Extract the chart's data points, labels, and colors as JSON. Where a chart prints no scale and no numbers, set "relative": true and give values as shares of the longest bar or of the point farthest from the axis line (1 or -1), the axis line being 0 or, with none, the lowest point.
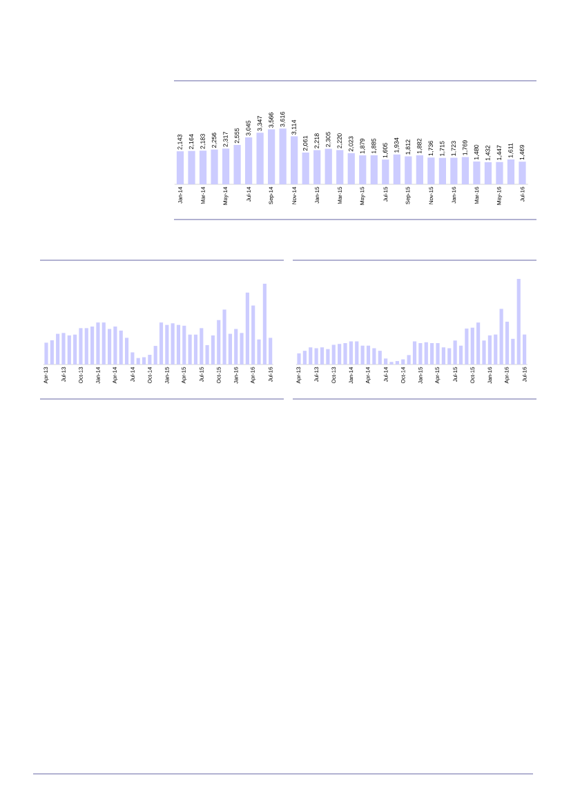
{
  "chart_data": [
    {
      "type": "bar",
      "color": "#ccccff",
      "value_labels": [
        "2,143",
        "2,164",
        "2,183",
        "2,256",
        "2,317",
        "2,555",
        "3,045",
        "3,347",
        "3,566",
        "3,616",
        "3,114",
        "2,061",
        "2,218",
        "2,305",
        "2,220",
        "2,023",
        "1,879",
        "1,885",
        "1,605",
        "1,934",
        "1,812",
        "1,882",
        "1,736",
        "1,715",
        "1,723",
        "1,769",
        "1,480",
        "1,432",
        "1,447",
        "1,611",
        "1,469"
      ],
      "categories": [
        "Jan-14",
        null,
        "Mar-14",
        null,
        "May-14",
        null,
        "Jul-14",
        null,
        "Sep-14",
        null,
        "Nov-14",
        null,
        "Jan-15",
        null,
        "Mar-15",
        null,
        "May-15",
        null,
        "Jul-15",
        null,
        "Sep-15",
        null,
        "Nov-15",
        null,
        "Jan-16",
        null,
        "Mar-16",
        null,
        "May-16",
        null,
        "Jul-16"
      ],
      "values": [
        2143,
        2164,
        2183,
        2256,
        2317,
        2555,
        3045,
        3347,
        3566,
        3616,
        3114,
        2061,
        2218,
        2305,
        2220,
        2023,
        1879,
        1885,
        1605,
        1934,
        1812,
        1882,
        1736,
        1715,
        1723,
        1769,
        1480,
        1432,
        1447,
        1611,
        1469
      ]
    },
    {
      "type": "bar",
      "color": "#ccccff",
      "relative": true,
      "categories": [
        "Apr-13",
        null,
        null,
        "Jul-13",
        null,
        null,
        "Oct-13",
        null,
        null,
        "Jan-14",
        null,
        null,
        "Apr-14",
        null,
        null,
        "Jul-14",
        null,
        null,
        "Oct-14",
        null,
        null,
        "Jan-15",
        null,
        null,
        "Apr-15",
        null,
        null,
        "Jul-15",
        null,
        null,
        "Oct-15",
        null,
        null,
        "Jan-16",
        null,
        null,
        "Apr-16",
        null,
        null,
        "Jul-16"
      ],
      "values": [
        0.27,
        0.3,
        0.38,
        0.39,
        0.36,
        0.37,
        0.45,
        0.45,
        0.47,
        0.52,
        0.52,
        0.44,
        0.47,
        0.42,
        0.33,
        0.15,
        0.08,
        0.09,
        0.12,
        0.23,
        0.52,
        0.49,
        0.51,
        0.49,
        0.48,
        0.37,
        0.37,
        0.45,
        0.24,
        0.36,
        0.55,
        0.68,
        0.38,
        0.44,
        0.39,
        0.89,
        0.73,
        0.31,
        1,
        0.33
      ]
    },
    {
      "type": "bar",
      "color": "#ccccff",
      "relative": true,
      "categories": [
        "Apr-13",
        null,
        null,
        "Jul-13",
        null,
        null,
        "Oct-13",
        null,
        null,
        "Jan-14",
        null,
        null,
        "Apr-14",
        null,
        null,
        "Jul-14",
        null,
        null,
        "Oct-14",
        null,
        null,
        "Jan-15",
        null,
        null,
        "Apr-15",
        null,
        null,
        "Jul-15",
        null,
        null,
        "Oct-15",
        null,
        null,
        "Jan-16",
        null,
        null,
        "Apr-16",
        null,
        null,
        "Jul-16"
      ],
      "values": [
        0.13,
        0.16,
        0.2,
        0.19,
        0.2,
        0.18,
        0.23,
        0.24,
        0.25,
        0.27,
        0.27,
        0.22,
        0.22,
        0.19,
        0.16,
        0.07,
        0.03,
        0.04,
        0.06,
        0.11,
        0.27,
        0.25,
        0.26,
        0.25,
        0.25,
        0.2,
        0.19,
        0.28,
        0.22,
        0.42,
        0.43,
        0.49,
        0.28,
        0.34,
        0.35,
        0.65,
        0.5,
        0.3,
        1,
        0.35
      ]
    }
  ]
}
